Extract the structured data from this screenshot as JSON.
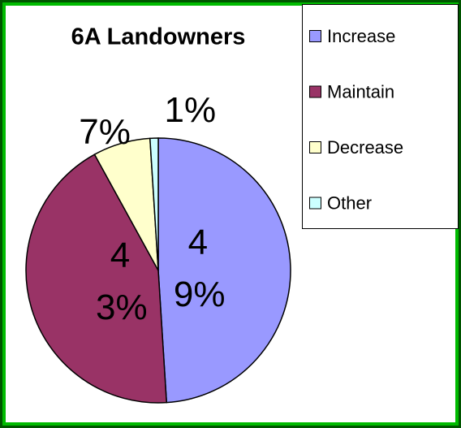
{
  "chart_data": {
    "type": "pie",
    "title": "6A Landowners",
    "categories": [
      "Increase",
      "Maintain",
      "Decrease",
      "Other"
    ],
    "values": [
      49,
      43,
      7,
      1
    ],
    "value_labels": [
      "49%",
      "43%",
      "7%",
      "1%"
    ],
    "colors": [
      "#9999ff",
      "#993366",
      "#ffffcc",
      "#ccffff"
    ],
    "legend": "right"
  }
}
